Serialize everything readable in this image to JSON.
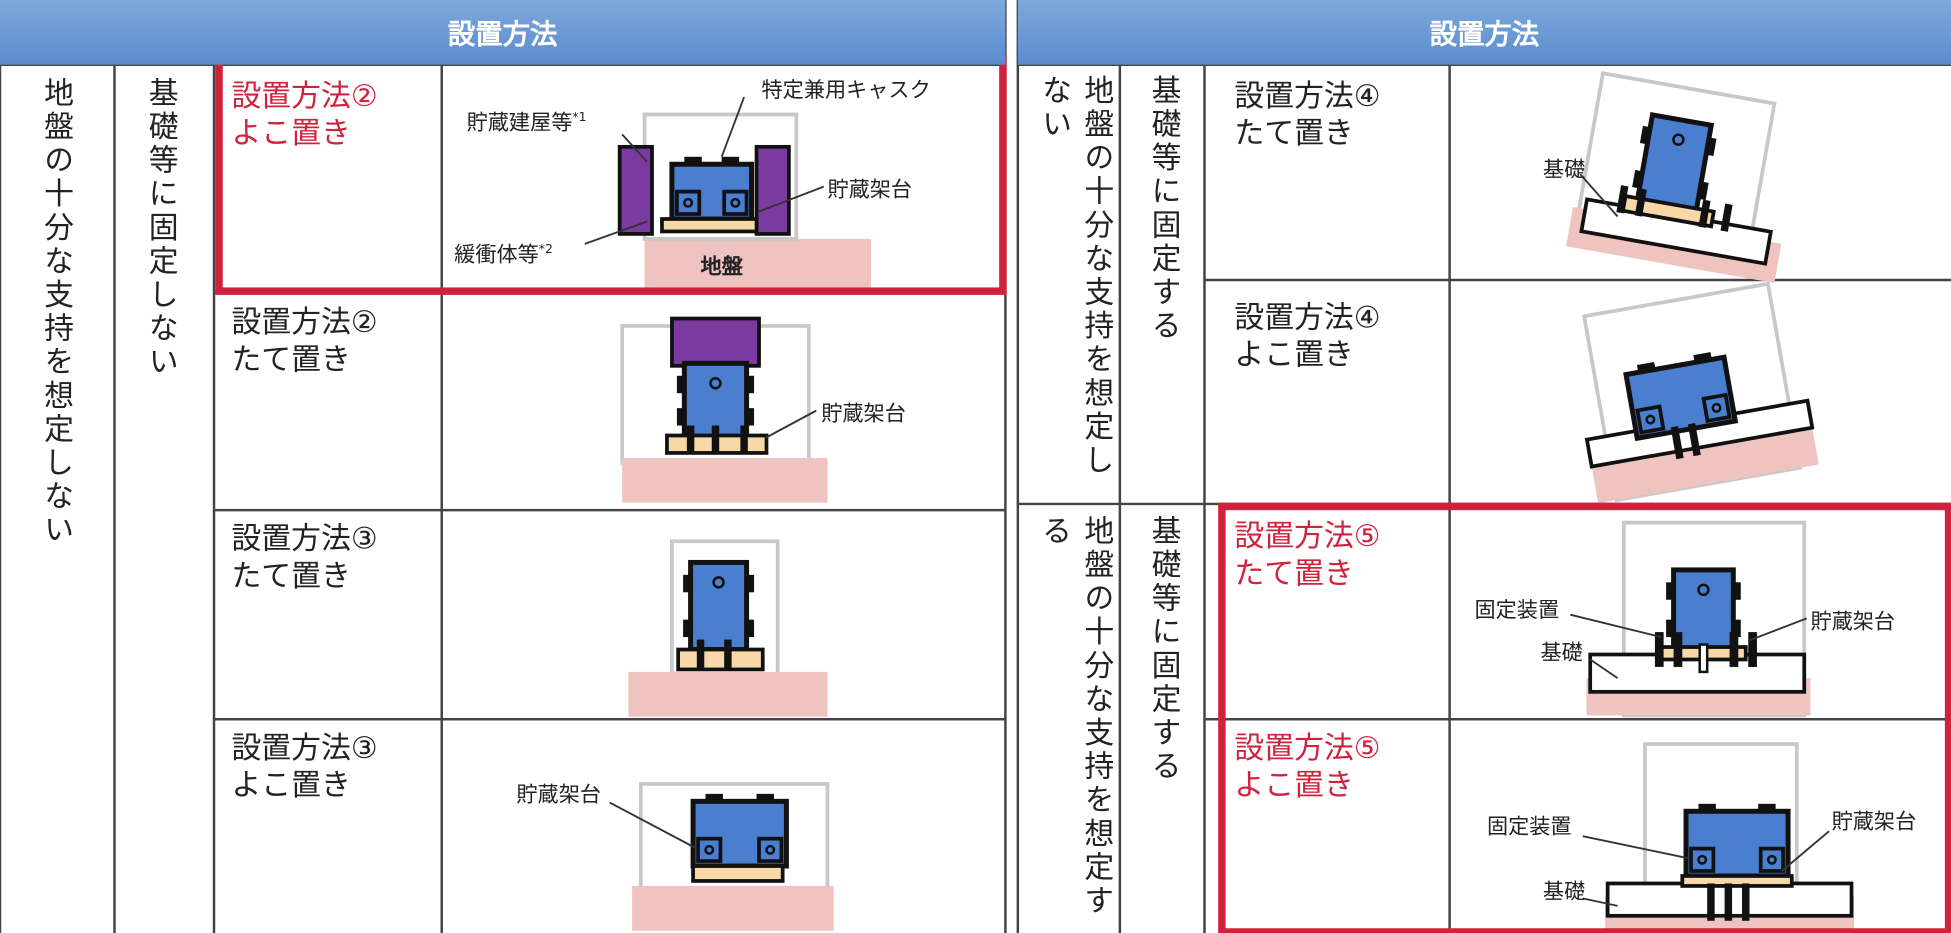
{
  "left_table": {
    "header": "設置方法",
    "support": "地盤の十分な支持を想定しない",
    "foundation": "基礎等に固定しない",
    "rows": [
      {
        "method": "設置方法②",
        "orientation": "よこ置き",
        "labels": {
          "cask": "特定兼用キャスク",
          "building": "貯蔵建屋等",
          "building_note": "*1",
          "rack": "貯蔵架台",
          "buffer": "緩衝体等",
          "buffer_note": "*2",
          "ground": "地盤"
        }
      },
      {
        "method": "設置方法②",
        "orientation": "たて置き",
        "labels": {
          "rack": "貯蔵架台"
        }
      },
      {
        "method": "設置方法③",
        "orientation": "たて置き"
      },
      {
        "method": "設置方法③",
        "orientation": "よこ置き",
        "labels": {
          "rack": "貯蔵架台"
        }
      }
    ]
  },
  "right_table": {
    "header": "設置方法",
    "groups": [
      {
        "support": "地盤の十分な支持を想定しない",
        "foundation": "基礎等に固定する",
        "rows": [
          {
            "method": "設置方法④",
            "orientation": "たて置き",
            "labels": {
              "base": "基礎"
            }
          },
          {
            "method": "設置方法④",
            "orientation": "よこ置き"
          }
        ]
      },
      {
        "support": "地盤の十分な支持を想定する",
        "foundation": "基礎等に固定する",
        "rows": [
          {
            "method": "設置方法⑤",
            "orientation": "たて置き",
            "labels": {
              "fixture": "固定装置",
              "base": "基礎",
              "rack": "貯蔵架台"
            }
          },
          {
            "method": "設置方法⑤",
            "orientation": "よこ置き",
            "labels": {
              "fixture": "固定装置",
              "base": "基礎",
              "rack": "貯蔵架台"
            }
          }
        ]
      }
    ]
  }
}
